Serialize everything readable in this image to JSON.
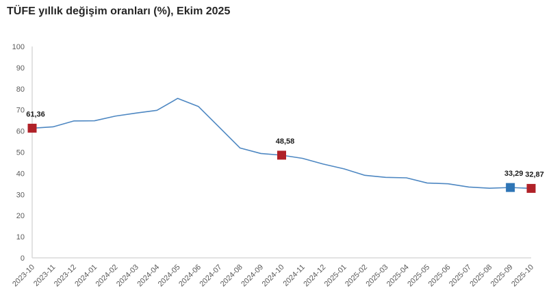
{
  "title": "TÜFE yıllık değişim oranları (%), Ekim 2025",
  "colors": {
    "background": "#FFFFFF",
    "title_text": "#262626",
    "axis_line": "#D9D9D9",
    "axis_text": "#595959",
    "point_label_text": "#1A1A1A",
    "line": "#4D87C2",
    "marker_red": "#B02128",
    "marker_blue": "#2E75B6"
  },
  "chart_data": {
    "type": "line",
    "title": "TÜFE yıllık değişim oranları (%), Ekim 2025",
    "xlabel": "",
    "ylabel": "",
    "ylim": [
      0,
      100
    ],
    "ytick_step": 10,
    "grid": false,
    "legend": "none",
    "line_color": "#4D87C2",
    "categories": [
      "2023-10",
      "2023-11",
      "2023-12",
      "2024-01",
      "2024-02",
      "2024-03",
      "2024-04",
      "2024-05",
      "2024-06",
      "2024-07",
      "2024-08",
      "2024-09",
      "2024-10",
      "2024-11",
      "2024-12",
      "2025-01",
      "2025-02",
      "2025-03",
      "2025-04",
      "2025-05",
      "2025-06",
      "2025-07",
      "2025-08",
      "2025-09",
      "2025-10"
    ],
    "values": [
      61.36,
      61.98,
      64.77,
      64.86,
      67.07,
      68.5,
      69.8,
      75.45,
      71.6,
      61.78,
      51.97,
      49.38,
      48.58,
      47.09,
      44.38,
      42.12,
      39.05,
      38.1,
      37.86,
      35.41,
      35.05,
      33.52,
      32.95,
      33.29,
      32.87
    ],
    "annotated_points": [
      {
        "category": "2023-10",
        "value": 61.36,
        "label": "61,36",
        "marker_color": "#B02128"
      },
      {
        "category": "2024-10",
        "value": 48.58,
        "label": "48,58",
        "marker_color": "#B02128"
      },
      {
        "category": "2025-09",
        "value": 33.29,
        "label": "33,29",
        "marker_color": "#2E75B6"
      },
      {
        "category": "2025-10",
        "value": 32.87,
        "label": "32,87",
        "marker_color": "#B02128"
      }
    ]
  }
}
